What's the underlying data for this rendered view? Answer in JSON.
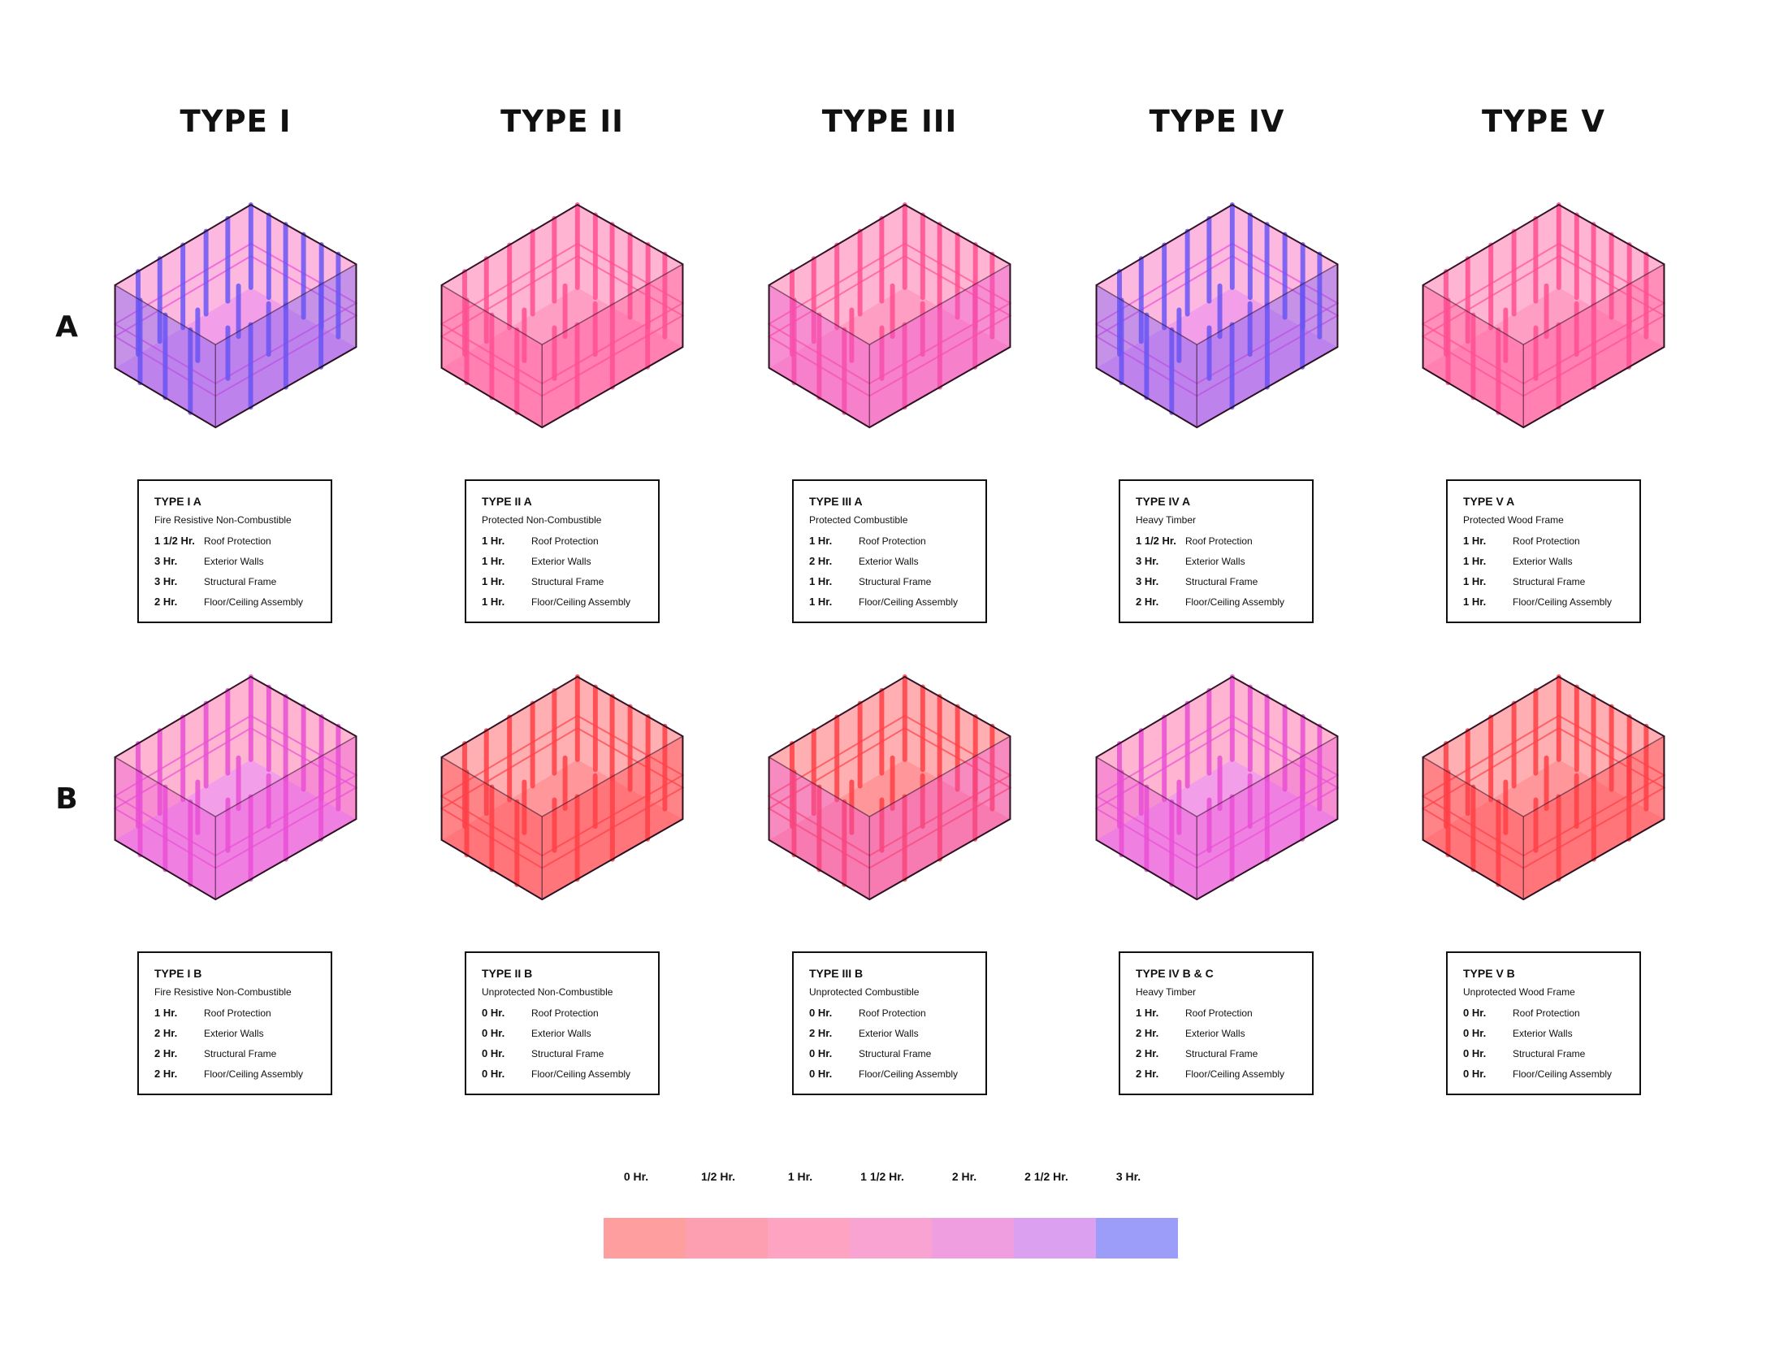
{
  "columns": [
    {
      "title": "TYPE I"
    },
    {
      "title": "TYPE II"
    },
    {
      "title": "TYPE III"
    },
    {
      "title": "TYPE IV"
    },
    {
      "title": "TYPE V"
    }
  ],
  "rows": [
    {
      "label": "A",
      "panels": [
        {
          "title": "TYPE I A",
          "subtitle": "Fire Resistive Non-Combustible",
          "ratings": [
            {
              "value": "1 1/2 Hr.",
              "item": "Roof Protection"
            },
            {
              "value": "3 Hr.",
              "item": "Exterior Walls"
            },
            {
              "value": "3 Hr.",
              "item": "Structural Frame"
            },
            {
              "value": "2 Hr.",
              "item": "Floor/Ceiling Assembly"
            }
          ],
          "model": {
            "floor": "2 Hr.",
            "right_wall": "3 Hr.",
            "left_wall": "3 Hr.",
            "back_walls": "1 1/2 Hr.",
            "columns": "3 Hr.",
            "beams": "2 Hr."
          }
        },
        {
          "title": "TYPE II A",
          "subtitle": "Protected Non-Combustible",
          "ratings": [
            {
              "value": "1 Hr.",
              "item": "Roof Protection"
            },
            {
              "value": "1 Hr.",
              "item": "Exterior Walls"
            },
            {
              "value": "1 Hr.",
              "item": "Structural Frame"
            },
            {
              "value": "1 Hr.",
              "item": "Floor/Ceiling Assembly"
            }
          ],
          "model": {
            "floor": "1 Hr.",
            "right_wall": "1 Hr.",
            "left_wall": "1 Hr.",
            "back_walls": "1 Hr.",
            "columns": "1 Hr.",
            "beams": "1 Hr."
          }
        },
        {
          "title": "TYPE III A",
          "subtitle": "Protected Combustible",
          "ratings": [
            {
              "value": "1 Hr.",
              "item": "Roof Protection"
            },
            {
              "value": "2 Hr.",
              "item": "Exterior Walls"
            },
            {
              "value": "1 Hr.",
              "item": "Structural Frame"
            },
            {
              "value": "1 Hr.",
              "item": "Floor/Ceiling Assembly"
            }
          ],
          "model": {
            "floor": "1 Hr.",
            "right_wall": "2 Hr.",
            "left_wall": "2 Hr.",
            "back_walls": "1 Hr.",
            "columns": "1 Hr.",
            "beams": "1 Hr."
          }
        },
        {
          "title": "TYPE IV A",
          "subtitle": "Heavy Timber",
          "ratings": [
            {
              "value": "1 1/2 Hr.",
              "item": "Roof Protection"
            },
            {
              "value": "3 Hr.",
              "item": "Exterior Walls"
            },
            {
              "value": "3 Hr.",
              "item": "Structural Frame"
            },
            {
              "value": "2 Hr.",
              "item": "Floor/Ceiling Assembly"
            }
          ],
          "model": {
            "floor": "2 Hr.",
            "right_wall": "3 Hr.",
            "left_wall": "3 Hr.",
            "back_walls": "1 1/2 Hr.",
            "columns": "3 Hr.",
            "beams": "2 Hr."
          }
        },
        {
          "title": "TYPE V A",
          "subtitle": "Protected Wood Frame",
          "ratings": [
            {
              "value": "1 Hr.",
              "item": "Roof Protection"
            },
            {
              "value": "1 Hr.",
              "item": "Exterior Walls"
            },
            {
              "value": "1 Hr.",
              "item": "Structural Frame"
            },
            {
              "value": "1 Hr.",
              "item": "Floor/Ceiling Assembly"
            }
          ],
          "model": {
            "floor": "1 Hr.",
            "right_wall": "1 Hr.",
            "left_wall": "1 Hr.",
            "back_walls": "1 Hr.",
            "columns": "1 Hr.",
            "beams": "1 Hr."
          }
        }
      ]
    },
    {
      "label": "B",
      "panels": [
        {
          "title": "TYPE I B",
          "subtitle": "Fire Resistive Non-Combustible",
          "ratings": [
            {
              "value": "1 Hr.",
              "item": "Roof Protection"
            },
            {
              "value": "2 Hr.",
              "item": "Exterior Walls"
            },
            {
              "value": "2 Hr.",
              "item": "Structural Frame"
            },
            {
              "value": "2 Hr.",
              "item": "Floor/Ceiling Assembly"
            }
          ],
          "model": {
            "floor": "2 Hr.",
            "right_wall": "2 Hr.",
            "left_wall": "2 Hr.",
            "back_walls": "1 Hr.",
            "columns": "2 Hr.",
            "beams": "2 Hr."
          }
        },
        {
          "title": "TYPE II B",
          "subtitle": "Unprotected Non-Combustible",
          "ratings": [
            {
              "value": "0 Hr.",
              "item": "Roof Protection"
            },
            {
              "value": "0 Hr.",
              "item": "Exterior Walls"
            },
            {
              "value": "0 Hr.",
              "item": "Structural Frame"
            },
            {
              "value": "0 Hr.",
              "item": "Floor/Ceiling Assembly"
            }
          ],
          "model": {
            "floor": "0 Hr.",
            "right_wall": "0 Hr.",
            "left_wall": "0 Hr.",
            "back_walls": "0 Hr.",
            "columns": "0 Hr.",
            "beams": "0 Hr."
          }
        },
        {
          "title": "TYPE III B",
          "subtitle": "Unprotected Combustible",
          "ratings": [
            {
              "value": "0 Hr.",
              "item": "Roof Protection"
            },
            {
              "value": "2 Hr.",
              "item": "Exterior Walls"
            },
            {
              "value": "0 Hr.",
              "item": "Structural Frame"
            },
            {
              "value": "0 Hr.",
              "item": "Floor/Ceiling Assembly"
            }
          ],
          "model": {
            "floor": "0 Hr.",
            "right_wall": "2 Hr.",
            "left_wall": "2 Hr.",
            "back_walls": "0 Hr.",
            "columns": "0 Hr.",
            "beams": "0 Hr."
          }
        },
        {
          "title": "TYPE IV B & C",
          "subtitle": "Heavy Timber",
          "ratings": [
            {
              "value": "1 Hr.",
              "item": "Roof Protection"
            },
            {
              "value": "2 Hr.",
              "item": "Exterior Walls"
            },
            {
              "value": "2 Hr.",
              "item": "Structural Frame"
            },
            {
              "value": "2 Hr.",
              "item": "Floor/Ceiling Assembly"
            }
          ],
          "model": {
            "floor": "2 Hr.",
            "right_wall": "2 Hr.",
            "left_wall": "2 Hr.",
            "back_walls": "1 Hr.",
            "columns": "2 Hr.",
            "beams": "2 Hr."
          }
        },
        {
          "title": "TYPE V B",
          "subtitle": "Unprotected Wood Frame",
          "ratings": [
            {
              "value": "0 Hr.",
              "item": "Roof Protection"
            },
            {
              "value": "0 Hr.",
              "item": "Exterior Walls"
            },
            {
              "value": "0 Hr.",
              "item": "Structural Frame"
            },
            {
              "value": "0 Hr.",
              "item": "Floor/Ceiling Assembly"
            }
          ],
          "model": {
            "floor": "0 Hr.",
            "right_wall": "0 Hr.",
            "left_wall": "0 Hr.",
            "back_walls": "0 Hr.",
            "columns": "0 Hr.",
            "beams": "0 Hr."
          }
        }
      ]
    }
  ],
  "legend": [
    {
      "label": "0 Hr.",
      "color": "#ff9e9e"
    },
    {
      "label": "1/2 Hr.",
      "color": "#fd9fb0"
    },
    {
      "label": "1 Hr.",
      "color": "#fea3c1"
    },
    {
      "label": "1 1/2 Hr.",
      "color": "#f9a3d2"
    },
    {
      "label": "2 Hr.",
      "color": "#ef9fe0"
    },
    {
      "label": "2 1/2 Hr.",
      "color": "#dba0ef"
    },
    {
      "label": "3 Hr.",
      "color": "#9c9cf9"
    }
  ],
  "model_palette": {
    "0 Hr.": "#ff3f46",
    "1/2 Hr.": "#ff4a6c",
    "1 Hr.": "#ff4f92",
    "1 1/2 Hr.": "#fb56b4",
    "2 Hr.": "#e94fd5",
    "2 1/2 Hr.": "#b65cf0",
    "3 Hr.": "#6a55f5"
  }
}
